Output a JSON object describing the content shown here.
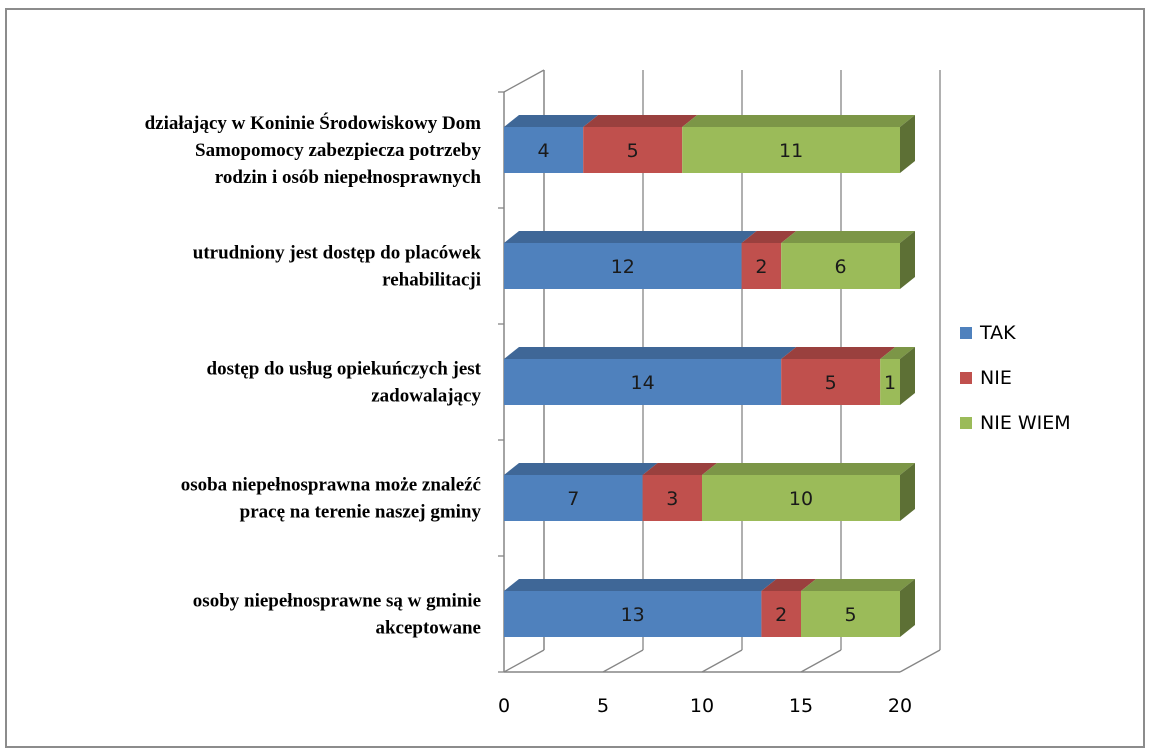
{
  "chart_data": {
    "type": "bar",
    "orientation": "horizontal",
    "stacked": true,
    "three_d": true,
    "categories": [
      [
        "działający w Koninie Środowiskowy Dom",
        "Samopomocy zabezpiecza potrzeby",
        "rodzin i osób niepełnosprawnych"
      ],
      [
        "utrudniony jest dostęp do placówek",
        "rehabilitacji"
      ],
      [
        "dostęp do usług opiekuńczych jest",
        "zadowalający"
      ],
      [
        "osoba niepełnosprawna może znaleźć",
        "pracę na terenie naszej gminy"
      ],
      [
        "osoby niepełnosprawne są w gminie",
        "akceptowane"
      ]
    ],
    "series": [
      {
        "name": "TAK",
        "color": "#4f81bd",
        "values": [
          4,
          12,
          14,
          7,
          13
        ]
      },
      {
        "name": "NIE",
        "color": "#c0504d",
        "values": [
          5,
          2,
          5,
          3,
          2
        ]
      },
      {
        "name": "NIE WIEM",
        "color": "#9bbb59",
        "values": [
          11,
          6,
          1,
          10,
          5
        ]
      }
    ],
    "xlim": [
      0,
      20
    ],
    "xticks": [
      "0",
      "5",
      "10",
      "15",
      "20"
    ],
    "grid": true,
    "legend_position": "right",
    "title": "",
    "xlabel": "",
    "ylabel": ""
  }
}
